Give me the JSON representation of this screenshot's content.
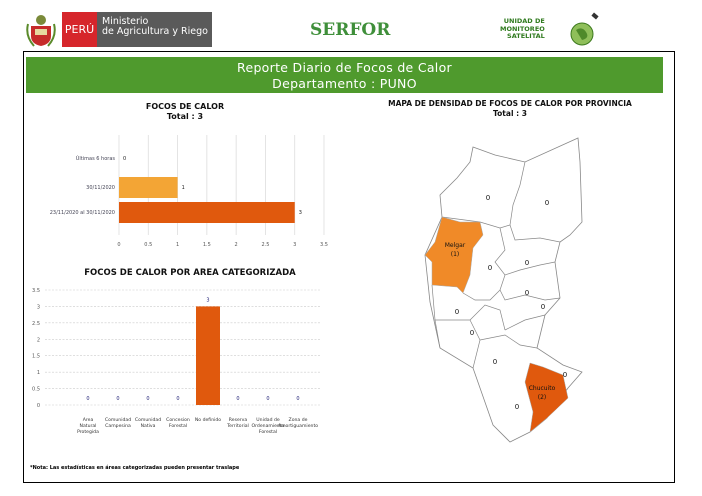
{
  "header": {
    "peru_label": "PERÚ",
    "ministry_line1": "Ministerio",
    "ministry_line2": "de Agricultura y Riego",
    "serfor_label": "SERFOR",
    "ums_line1": "UNIDAD DE",
    "ums_line2": "MONITOREO",
    "ums_line3": "SATELITAL"
  },
  "banner": {
    "title": "Reporte Diario de Focos de Calor",
    "subtitle": "Departamento : PUNO"
  },
  "colors": {
    "green": "#4f9a2d",
    "light_orange": "#f3a535",
    "dark_orange": "#e0590d",
    "melgar": "#f08a28"
  },
  "chart_data": [
    {
      "type": "bar",
      "orientation": "horizontal",
      "title": "FOCOS DE CALOR",
      "subtitle": "Total : 3",
      "categories": [
        "Últimas 6 horas",
        "30/11/2020",
        "23/11/2020 al 30/11/2020"
      ],
      "values": [
        0,
        1,
        3
      ],
      "xlim": [
        0,
        3.5
      ],
      "xticks": [
        "0",
        "0.5",
        "1",
        "1.5",
        "2",
        "2.5",
        "3",
        "3.5"
      ],
      "grid": true
    },
    {
      "type": "bar",
      "title": "FOCOS DE CALOR POR AREA CATEGORIZADA",
      "categories": [
        "Area Natural Protegida",
        "Comunidad Campesina",
        "Comunidad Nativa",
        "Concesion Forestal",
        "No definido",
        "Reserva Territorial",
        "Unidad de Ordenamiento Forestal",
        "Zona de Amortiguamiento"
      ],
      "values": [
        0,
        0,
        0,
        0,
        3,
        0,
        0,
        0
      ],
      "ylim": [
        0,
        3.5
      ],
      "yticks": [
        "0",
        "0.5",
        "1",
        "1.5",
        "2",
        "2.5",
        "3",
        "3.5"
      ],
      "grid": true
    }
  ],
  "map": {
    "title": "MAPA DE DENSIDAD DE FOCOS DE CALOR POR PROVINCIA",
    "subtitle": "Total : 3",
    "provinces": [
      {
        "name": "Melgar",
        "count": "(1)"
      },
      {
        "name": "Chucuito",
        "count": "(2)"
      }
    ],
    "zero_label": "0"
  },
  "note": "*Nota: Las estadísticas en áreas categorizadas pueden presentar traslape"
}
